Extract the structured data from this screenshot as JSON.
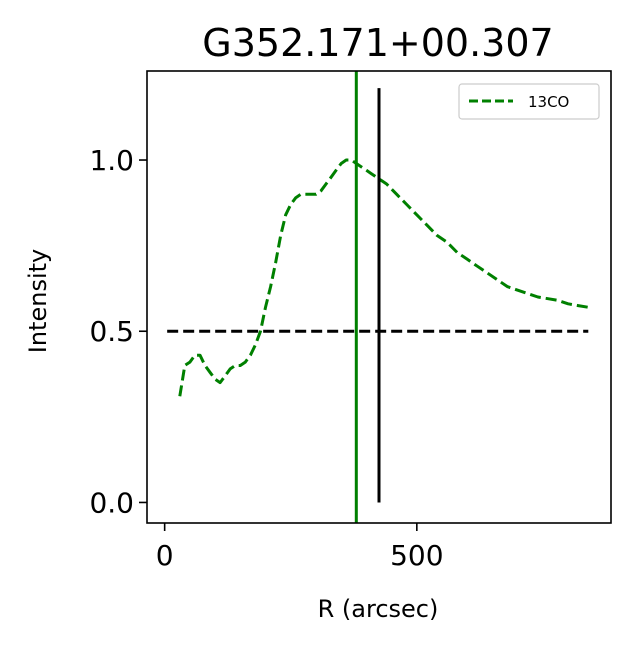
{
  "chart_data": {
    "type": "line",
    "title": "G352.171+00.307",
    "xlabel": "R (arcsec)",
    "ylabel": "Intensity",
    "xlim": [
      -35,
      885
    ],
    "ylim": [
      -0.06,
      1.26
    ],
    "xticks": [
      {
        "value": 0,
        "label": "0"
      },
      {
        "value": 500,
        "label": "500"
      }
    ],
    "yticks": [
      {
        "value": 0.0,
        "label": "0.0"
      },
      {
        "value": 0.5,
        "label": "0.5"
      },
      {
        "value": 1.0,
        "label": "1.0"
      }
    ],
    "grid": false,
    "legend_position": "top-right",
    "series": [
      {
        "name": "13CO",
        "color": "#008000",
        "style": "dashed",
        "x": [
          30,
          40,
          50,
          60,
          70,
          80,
          90,
          100,
          110,
          120,
          130,
          140,
          150,
          160,
          170,
          180,
          190,
          200,
          210,
          220,
          230,
          240,
          250,
          260,
          270,
          280,
          290,
          300,
          310,
          320,
          330,
          340,
          350,
          360,
          370,
          380,
          390,
          400,
          410,
          420,
          440,
          460,
          480,
          500,
          520,
          540,
          560,
          580,
          600,
          620,
          640,
          660,
          680,
          700,
          720,
          740,
          760,
          780,
          800,
          820,
          840
        ],
        "y": [
          0.31,
          0.4,
          0.41,
          0.43,
          0.43,
          0.4,
          0.38,
          0.36,
          0.35,
          0.37,
          0.39,
          0.4,
          0.4,
          0.41,
          0.43,
          0.46,
          0.5,
          0.57,
          0.63,
          0.7,
          0.78,
          0.84,
          0.87,
          0.89,
          0.9,
          0.9,
          0.9,
          0.9,
          0.91,
          0.93,
          0.95,
          0.97,
          0.99,
          1.0,
          1.0,
          0.99,
          0.98,
          0.97,
          0.96,
          0.95,
          0.93,
          0.9,
          0.87,
          0.84,
          0.81,
          0.78,
          0.76,
          0.73,
          0.71,
          0.69,
          0.67,
          0.65,
          0.63,
          0.62,
          0.61,
          0.6,
          0.595,
          0.59,
          0.58,
          0.575,
          0.57
        ]
      }
    ],
    "hlines": [
      {
        "y": 0.5,
        "x": [
          5,
          840
        ],
        "color": "#000000",
        "style": "dashed"
      }
    ],
    "vlines": [
      {
        "x": 380,
        "color": "#008000",
        "style": "solid",
        "span": "full"
      },
      {
        "x": 425,
        "ymin": 0.0,
        "ymax": 1.21,
        "color": "#000000",
        "style": "solid"
      }
    ]
  }
}
